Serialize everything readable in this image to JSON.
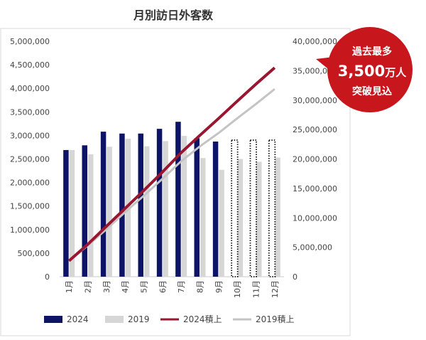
{
  "chart_data": {
    "type": "bar",
    "title": "月別訪日外客数",
    "categories": [
      "1月",
      "2月",
      "3月",
      "4月",
      "5月",
      "6月",
      "7月",
      "8月",
      "9月",
      "10月",
      "11月",
      "12月"
    ],
    "series": [
      {
        "name": "2024",
        "kind": "bar",
        "axis": "left",
        "values": [
          2690000,
          2790000,
          3080000,
          3040000,
          3040000,
          3140000,
          3290000,
          2940000,
          2870000,
          null,
          null,
          null
        ]
      },
      {
        "name": "2019",
        "kind": "bar",
        "axis": "left",
        "values": [
          2690000,
          2600000,
          2760000,
          2930000,
          2770000,
          2880000,
          2990000,
          2520000,
          2270000,
          2500000,
          2440000,
          2530000
        ]
      },
      {
        "name": "2024積上",
        "kind": "line",
        "axis": "right",
        "values": [
          2690000,
          5480000,
          8560000,
          11600000,
          14640000,
          17780000,
          21070000,
          24010000,
          26880000,
          29830000,
          32720000,
          35500000
        ]
      },
      {
        "name": "2019積上",
        "kind": "line",
        "axis": "right",
        "values": [
          2690000,
          5290000,
          8050000,
          10980000,
          13750000,
          16630000,
          19620000,
          22140000,
          24410000,
          26910000,
          29350000,
          31880000
        ]
      }
    ],
    "placeholder_months": [
      "10月",
      "11月",
      "12月"
    ],
    "ylim_left": [
      0,
      5000000
    ],
    "ylim_right": [
      0,
      40000000
    ],
    "yticks_left": [
      "5,000,000",
      "4,500,000",
      "4,000,000",
      "3,500,000",
      "3,000,000",
      "2,500,000",
      "2,000,000",
      "1,500,000",
      "1,000,000",
      "500,000",
      "0"
    ],
    "yticks_right": [
      "40,000,000",
      "35,000,000",
      "30,000,000",
      "25,000,000",
      "20,000,000",
      "15,000,000",
      "10,000,000",
      "5,000,000",
      "0"
    ],
    "grid": false,
    "legend_position": "bottom",
    "colors": {
      "bar_2024": "#0d1466",
      "bar_2019": "#d6d6d6",
      "line_2024": "#9a1630",
      "line_2019": "#c4c4c4",
      "badge": "#c8161d"
    },
    "annotation": {
      "line1": "過去最多",
      "line2_number": "3,500",
      "line2_unit": "万人",
      "line3": "突破見込"
    }
  }
}
